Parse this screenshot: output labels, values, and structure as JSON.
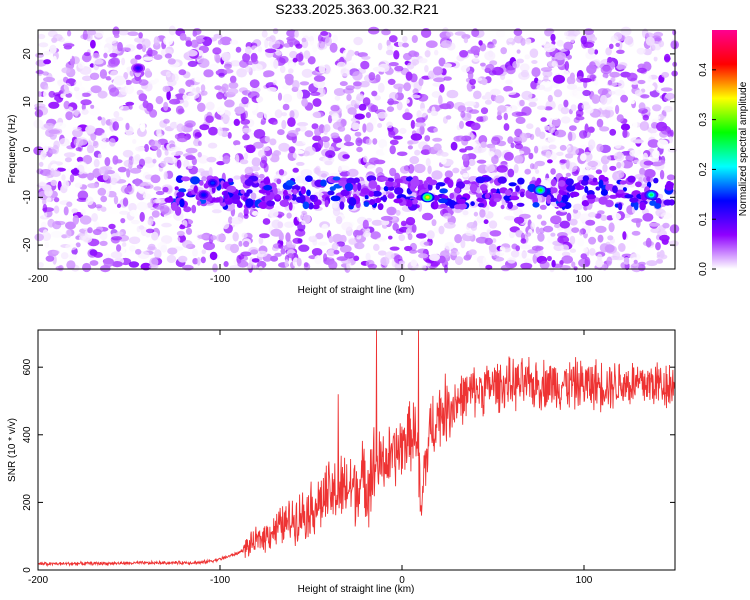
{
  "title": "S233.2025.363.00.32.R21",
  "chart_data": [
    {
      "type": "heatmap",
      "xlabel": "Height of straight line (km)",
      "ylabel": "Frequency (Hz)",
      "xlim": [
        -200,
        150
      ],
      "ylim": [
        -25,
        25
      ],
      "x_ticks": [
        "-200",
        "-100",
        "0",
        "100"
      ],
      "y_ticks": [
        "20",
        "10",
        "0",
        "-10",
        "-20"
      ],
      "colorbar": {
        "label": "Normalized spectral amplitude",
        "range": [
          0,
          0.48
        ],
        "ticks": [
          "0.0",
          "0.1",
          "0.2",
          "0.3",
          "0.4"
        ],
        "palette": [
          "#ffffff",
          "#8f00ff",
          "#0000ff",
          "#00ffff",
          "#00ff00",
          "#ffff00",
          "#ff0000",
          "#ff0090"
        ]
      },
      "signal_band": {
        "frequency": -9,
        "x_range": [
          -130,
          150
        ]
      },
      "peaks": [
        {
          "x": 14,
          "frequency": -10,
          "amplitude": 0.35
        },
        {
          "x": 76,
          "frequency": -8.5,
          "amplitude": 0.28
        },
        {
          "x": 137,
          "frequency": -9.5,
          "amplitude": 0.25
        },
        {
          "x": -104,
          "frequency": -7,
          "amplitude": 0.15
        },
        {
          "x": -109,
          "frequency": -9.5,
          "amplitude": 0.14
        },
        {
          "x": -145,
          "frequency": 17,
          "amplitude": 0.12
        }
      ]
    },
    {
      "type": "line",
      "xlabel": "Height of straight line (km)",
      "ylabel": "SNR (10 * v/v)",
      "xlim": [
        -200,
        150
      ],
      "ylim": [
        0,
        710
      ],
      "x_ticks": [
        "-200",
        "-100",
        "0",
        "100"
      ],
      "y_ticks": [
        "0",
        "200",
        "400",
        "600"
      ],
      "color": "#ee3333",
      "series": [
        {
          "x": [
            -200,
            -110,
            -100,
            -90,
            -80,
            -70,
            -60,
            -50,
            -40,
            -30,
            -20,
            -15,
            -10,
            -5,
            0,
            5,
            8,
            10,
            11,
            12,
            14,
            16,
            18,
            20,
            30,
            40,
            50,
            60,
            70,
            80,
            90,
            100,
            110,
            120,
            130,
            140,
            150
          ],
          "y": [
            18,
            22,
            32,
            50,
            85,
            120,
            150,
            180,
            220,
            240,
            260,
            300,
            320,
            330,
            370,
            400,
            410,
            200,
            150,
            300,
            350,
            420,
            440,
            460,
            500,
            530,
            545,
            550,
            548,
            552,
            550,
            548,
            550,
            552,
            550,
            552,
            550
          ]
        }
      ],
      "spikes": [
        {
          "x": -14,
          "y": 710
        },
        {
          "x": 9,
          "y": 710
        },
        {
          "x": -35,
          "y": 520
        }
      ]
    }
  ]
}
